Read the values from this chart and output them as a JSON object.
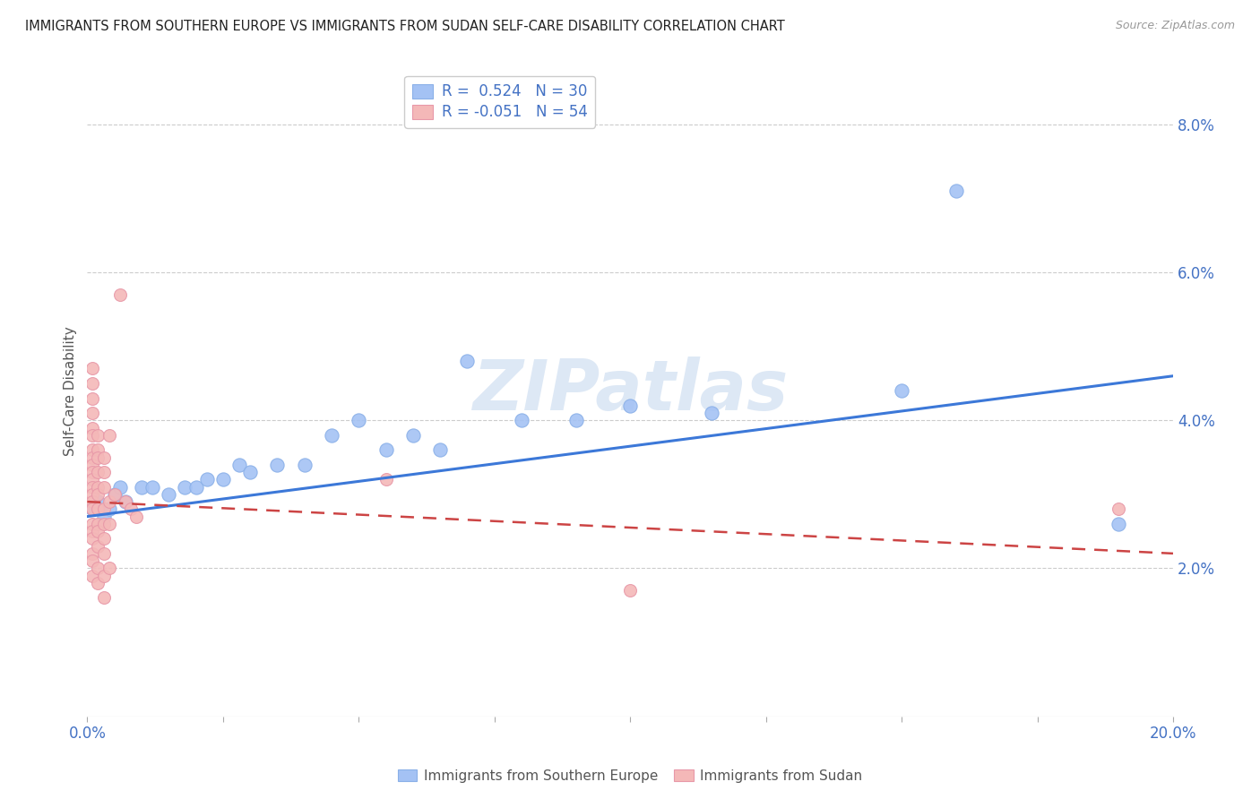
{
  "title": "IMMIGRANTS FROM SOUTHERN EUROPE VS IMMIGRANTS FROM SUDAN SELF-CARE DISABILITY CORRELATION CHART",
  "source": "Source: ZipAtlas.com",
  "ylabel": "Self-Care Disability",
  "xlim": [
    0.0,
    0.2
  ],
  "ylim": [
    0.0,
    0.088
  ],
  "yticks": [
    0.02,
    0.04,
    0.06,
    0.08
  ],
  "ytick_labels": [
    "2.0%",
    "4.0%",
    "6.0%",
    "8.0%"
  ],
  "xticks": [
    0.0,
    0.025,
    0.05,
    0.075,
    0.1,
    0.125,
    0.15,
    0.175,
    0.2
  ],
  "xtick_labels": [
    "0.0%",
    "",
    "",
    "",
    "",
    "",
    "",
    "",
    "20.0%"
  ],
  "color_blue": "#a4c2f4",
  "color_pink": "#f4b8b8",
  "color_line_blue": "#3c78d8",
  "color_line_pink": "#cc4444",
  "watermark": "ZIPatlas",
  "blue_points": [
    [
      0.001,
      0.028
    ],
    [
      0.002,
      0.029
    ],
    [
      0.003,
      0.027
    ],
    [
      0.004,
      0.028
    ],
    [
      0.005,
      0.03
    ],
    [
      0.006,
      0.031
    ],
    [
      0.007,
      0.029
    ],
    [
      0.01,
      0.031
    ],
    [
      0.012,
      0.031
    ],
    [
      0.015,
      0.03
    ],
    [
      0.018,
      0.031
    ],
    [
      0.02,
      0.031
    ],
    [
      0.022,
      0.032
    ],
    [
      0.025,
      0.032
    ],
    [
      0.028,
      0.034
    ],
    [
      0.03,
      0.033
    ],
    [
      0.035,
      0.034
    ],
    [
      0.04,
      0.034
    ],
    [
      0.045,
      0.038
    ],
    [
      0.05,
      0.04
    ],
    [
      0.055,
      0.036
    ],
    [
      0.06,
      0.038
    ],
    [
      0.065,
      0.036
    ],
    [
      0.07,
      0.048
    ],
    [
      0.08,
      0.04
    ],
    [
      0.09,
      0.04
    ],
    [
      0.1,
      0.042
    ],
    [
      0.115,
      0.041
    ],
    [
      0.15,
      0.044
    ],
    [
      0.16,
      0.071
    ],
    [
      0.19,
      0.026
    ]
  ],
  "pink_points": [
    [
      0.001,
      0.045
    ],
    [
      0.001,
      0.047
    ],
    [
      0.001,
      0.043
    ],
    [
      0.001,
      0.041
    ],
    [
      0.001,
      0.039
    ],
    [
      0.001,
      0.038
    ],
    [
      0.001,
      0.036
    ],
    [
      0.001,
      0.035
    ],
    [
      0.001,
      0.034
    ],
    [
      0.001,
      0.033
    ],
    [
      0.001,
      0.032
    ],
    [
      0.001,
      0.031
    ],
    [
      0.001,
      0.03
    ],
    [
      0.001,
      0.029
    ],
    [
      0.001,
      0.028
    ],
    [
      0.001,
      0.026
    ],
    [
      0.001,
      0.025
    ],
    [
      0.001,
      0.024
    ],
    [
      0.001,
      0.022
    ],
    [
      0.001,
      0.021
    ],
    [
      0.001,
      0.019
    ],
    [
      0.002,
      0.038
    ],
    [
      0.002,
      0.036
    ],
    [
      0.002,
      0.035
    ],
    [
      0.002,
      0.033
    ],
    [
      0.002,
      0.031
    ],
    [
      0.002,
      0.03
    ],
    [
      0.002,
      0.028
    ],
    [
      0.002,
      0.026
    ],
    [
      0.002,
      0.025
    ],
    [
      0.002,
      0.023
    ],
    [
      0.002,
      0.02
    ],
    [
      0.002,
      0.018
    ],
    [
      0.003,
      0.035
    ],
    [
      0.003,
      0.033
    ],
    [
      0.003,
      0.031
    ],
    [
      0.003,
      0.028
    ],
    [
      0.003,
      0.026
    ],
    [
      0.003,
      0.024
    ],
    [
      0.003,
      0.022
    ],
    [
      0.003,
      0.019
    ],
    [
      0.003,
      0.016
    ],
    [
      0.004,
      0.038
    ],
    [
      0.004,
      0.029
    ],
    [
      0.004,
      0.026
    ],
    [
      0.004,
      0.02
    ],
    [
      0.005,
      0.03
    ],
    [
      0.006,
      0.057
    ],
    [
      0.007,
      0.029
    ],
    [
      0.008,
      0.028
    ],
    [
      0.009,
      0.027
    ],
    [
      0.055,
      0.032
    ],
    [
      0.1,
      0.017
    ],
    [
      0.19,
      0.028
    ]
  ],
  "blue_trendline": [
    0.0,
    0.027,
    0.2,
    0.046
  ],
  "pink_trendline": [
    0.0,
    0.029,
    0.2,
    0.022
  ]
}
